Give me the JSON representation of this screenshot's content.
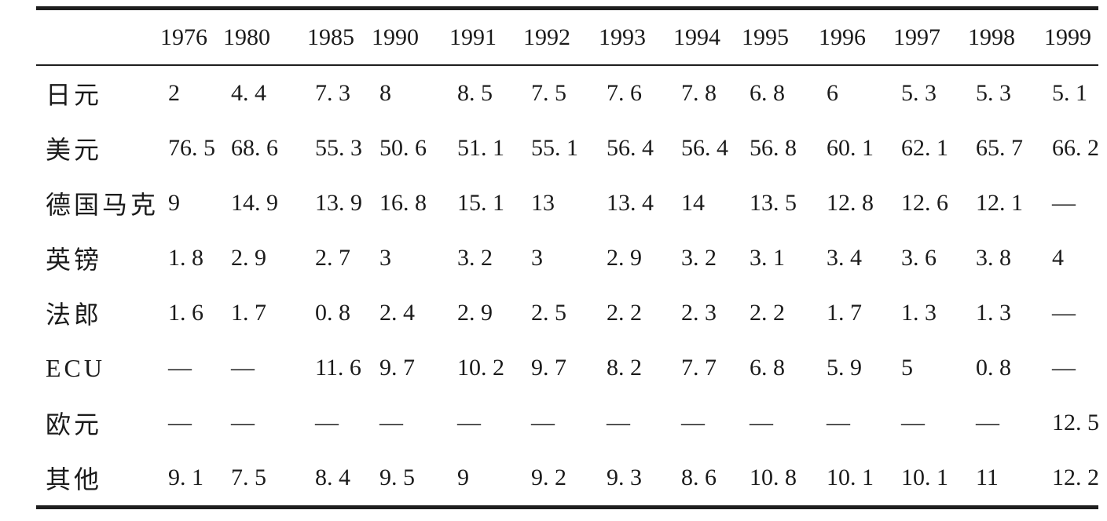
{
  "table": {
    "description": "currency-shares-by-year-table",
    "missing_marker": "—",
    "years": [
      "1976",
      "1980",
      "1985",
      "1990",
      "1991",
      "1992",
      "1993",
      "1994",
      "1995",
      "1996",
      "1997",
      "1998",
      "1999"
    ],
    "rows": [
      {
        "label": "日元",
        "values": [
          "2",
          "4. 4",
          "7. 3",
          "8",
          "8. 5",
          "7. 5",
          "7. 6",
          "7. 8",
          "6. 8",
          "6",
          "5. 3",
          "5. 3",
          "5. 1"
        ]
      },
      {
        "label": "美元",
        "values": [
          "76. 5",
          "68. 6",
          "55. 3",
          "50. 6",
          "51. 1",
          "55. 1",
          "56. 4",
          "56. 4",
          "56. 8",
          "60. 1",
          "62. 1",
          "65. 7",
          "66. 2"
        ]
      },
      {
        "label": "德国马克",
        "values": [
          "9",
          "14. 9",
          "13. 9",
          "16. 8",
          "15. 1",
          "13",
          "13. 4",
          "14",
          "13. 5",
          "12. 8",
          "12. 6",
          "12. 1",
          "—"
        ]
      },
      {
        "label": "英镑",
        "values": [
          "1. 8",
          "2. 9",
          "2. 7",
          "3",
          "3. 2",
          "3",
          "2. 9",
          "3. 2",
          "3. 1",
          "3. 4",
          "3. 6",
          "3. 8",
          "4"
        ]
      },
      {
        "label": "法郎",
        "values": [
          "1. 6",
          "1. 7",
          "0. 8",
          "2. 4",
          "2. 9",
          "2. 5",
          "2. 2",
          "2. 3",
          "2. 2",
          "1. 7",
          "1. 3",
          "1. 3",
          "—"
        ]
      },
      {
        "label": "ECU",
        "values": [
          "—",
          "—",
          "11. 6",
          "9. 7",
          "10. 2",
          "9. 7",
          "8. 2",
          "7. 7",
          "6. 8",
          "5. 9",
          "5",
          "0. 8",
          "—"
        ]
      },
      {
        "label": "欧元",
        "values": [
          "—",
          "—",
          "—",
          "—",
          "—",
          "—",
          "—",
          "—",
          "—",
          "—",
          "—",
          "—",
          "12. 5"
        ]
      },
      {
        "label": "其他",
        "values": [
          "9. 1",
          "7. 5",
          "8. 4",
          "9. 5",
          "9",
          "9. 2",
          "9. 3",
          "8. 6",
          "10. 8",
          "10. 1",
          "10. 1",
          "11",
          "12. 2"
        ]
      }
    ]
  },
  "colors": {
    "ink": "#1b1b1b",
    "rule": "#1e1e1e",
    "paper": "#ffffff"
  }
}
